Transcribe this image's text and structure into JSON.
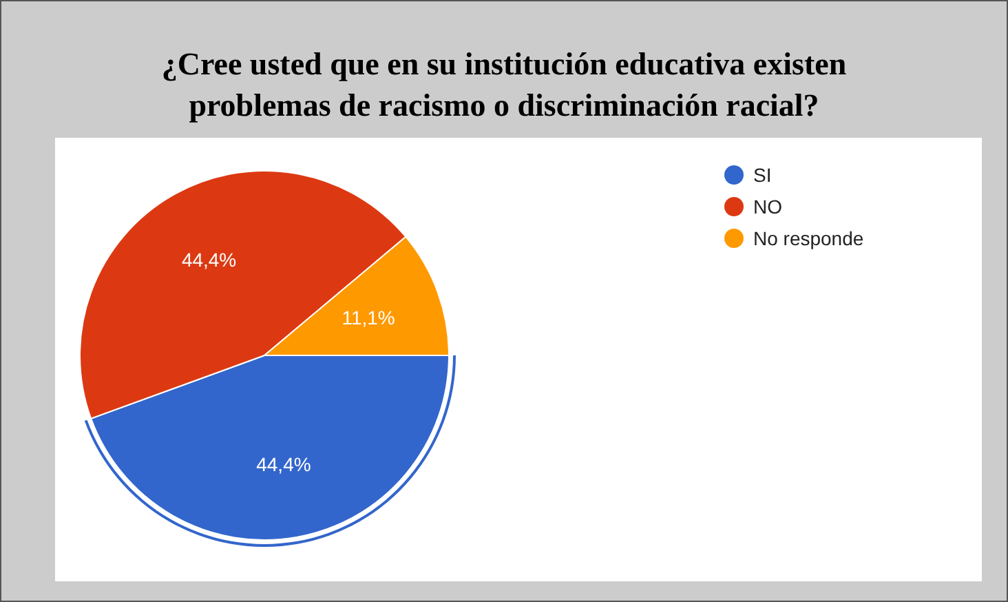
{
  "chart_data": {
    "type": "pie",
    "title": "¿Cree usted que en su institución educativa existen problemas de racismo o discriminación racial?",
    "categories": [
      "SI",
      "NO",
      "No responde"
    ],
    "values": [
      44.4,
      44.4,
      11.1
    ],
    "value_labels": [
      "44,4%",
      "44,4%",
      "11,1%"
    ],
    "colors": [
      "#3366cc",
      "#dc3912",
      "#ff9900"
    ],
    "legend": "top right"
  }
}
